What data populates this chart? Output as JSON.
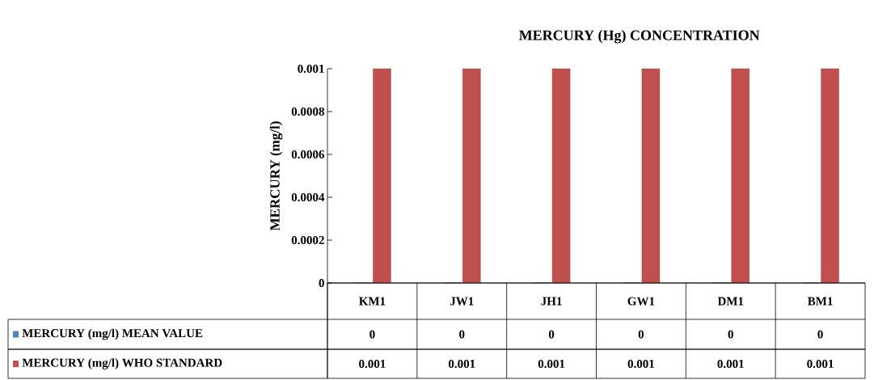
{
  "chart_data": {
    "type": "bar",
    "title": "MERCURY (Hg) CONCENTRATION",
    "ylabel": "MERCURY (mg/l)",
    "categories": [
      "KM1",
      "JW1",
      "JH1",
      "GW1",
      "DM1",
      "BM1"
    ],
    "series": [
      {
        "name": "MERCURY (mg/l) MEAN VALUE",
        "color": "#4f81bd",
        "values": [
          0,
          0,
          0,
          0,
          0,
          0
        ]
      },
      {
        "name": "MERCURY (mg/l) WHO STANDARD",
        "color": "#c0504d",
        "values": [
          0.001,
          0.001,
          0.001,
          0.001,
          0.001,
          0.001
        ]
      }
    ],
    "ylim": [
      0,
      0.001
    ],
    "yticks": [
      0,
      0.0002,
      0.0004,
      0.0006,
      0.0008,
      0.001
    ],
    "data_labels": true,
    "legend": "bottom",
    "grid": false
  }
}
